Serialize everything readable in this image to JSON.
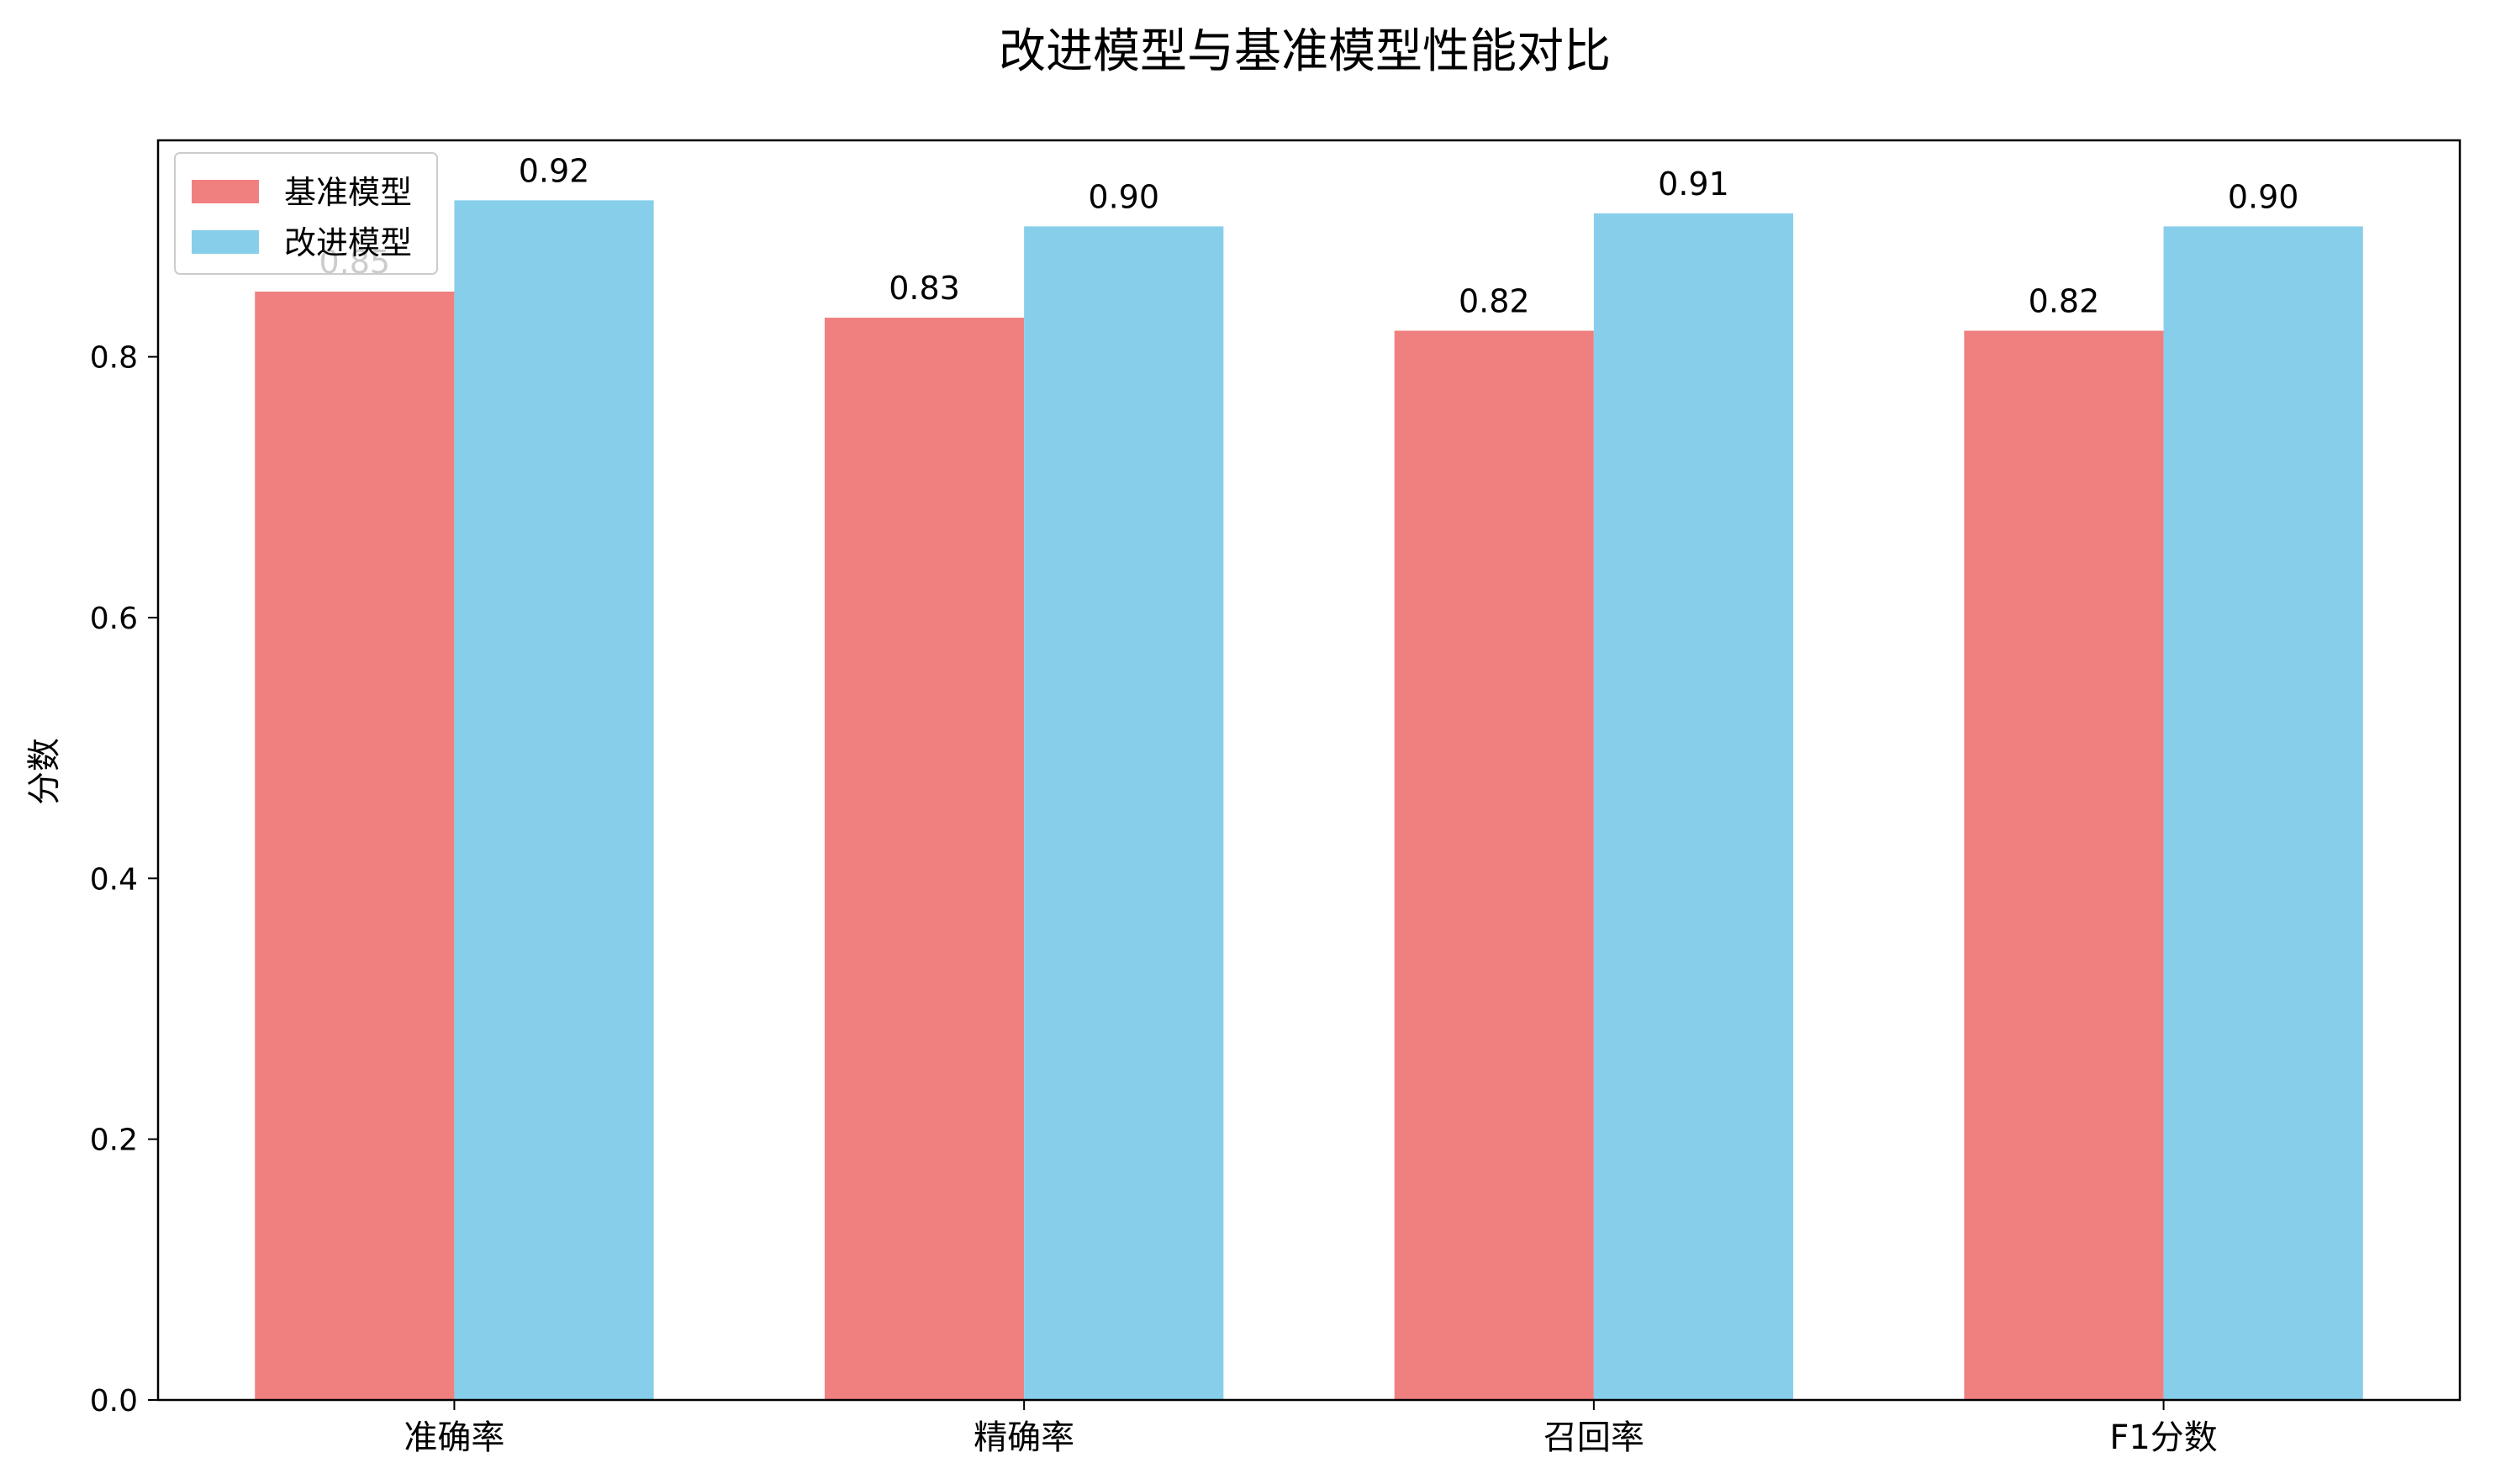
{
  "chart_data": {
    "type": "bar",
    "title": "改进模型与基准模型性能对比",
    "xlabel": "",
    "ylabel": "分数",
    "categories": [
      "准确率",
      "精确率",
      "召回率",
      "F1分数"
    ],
    "series": [
      {
        "name": "基准模型",
        "values": [
          0.85,
          0.83,
          0.82,
          0.82
        ],
        "labels": [
          "0.85",
          "0.83",
          "0.82",
          "0.82"
        ],
        "color": "#F08080"
      },
      {
        "name": "改进模型",
        "values": [
          0.92,
          0.9,
          0.91,
          0.9
        ],
        "labels": [
          "0.92",
          "0.90",
          "0.91",
          "0.90"
        ],
        "color": "#87CEEB"
      }
    ],
    "ylim": [
      0,
      0.966
    ],
    "yticks": [
      "0.0",
      "0.2",
      "0.4",
      "0.6",
      "0.8"
    ],
    "grid": false,
    "legend_position": "top-left"
  }
}
